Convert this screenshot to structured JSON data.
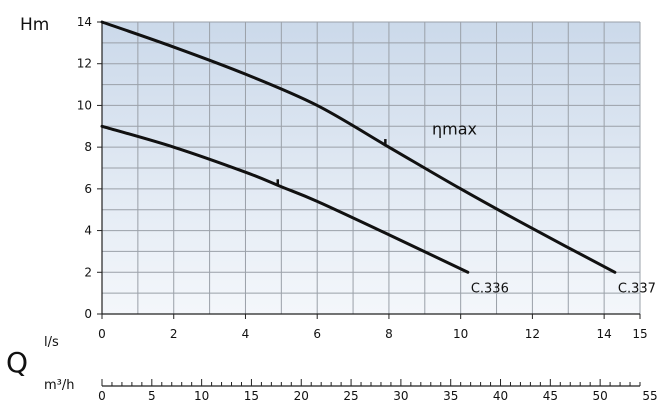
{
  "chart_data": {
    "type": "line",
    "y_axis": {
      "label": "Hm",
      "ylim": [
        0,
        14
      ],
      "ticks": [
        "0",
        "2",
        "4",
        "6",
        "8",
        "10",
        "12",
        "14"
      ]
    },
    "x_axis_ls": {
      "label": "l/s",
      "xlim": [
        0,
        15
      ],
      "ticks": [
        "0",
        "2",
        "4",
        "6",
        "8",
        "10",
        "12",
        "14",
        "15"
      ]
    },
    "x_axis_m3h": {
      "label": "m³/h",
      "xlim": [
        0,
        54
      ],
      "ticks": [
        "0",
        "5",
        "10",
        "15",
        "20",
        "25",
        "30",
        "35",
        "40",
        "45",
        "50",
        "55"
      ]
    },
    "quantity_symbol": "Q",
    "grid": true,
    "background": "light blue vertical gradient",
    "colors": {
      "curve": "#111111",
      "grid": "#9aa0a8",
      "background_top": "#cbd9ea",
      "background_bottom": "#f4f7fb"
    },
    "series": [
      {
        "name": "C.337",
        "x": [
          0,
          2,
          4,
          6,
          8,
          10,
          12,
          14.3
        ],
        "y": [
          14,
          12.8,
          11.5,
          10.0,
          8.0,
          6.0,
          4.1,
          2.0
        ],
        "eta_max_x": 7.9
      },
      {
        "name": "C.336",
        "x": [
          0,
          2,
          4,
          5,
          6,
          8,
          10.2
        ],
        "y": [
          9,
          8.0,
          6.8,
          6.1,
          5.4,
          3.8,
          2.0
        ],
        "eta_max_x": 4.9
      }
    ],
    "annotations": [
      "ηmax"
    ]
  }
}
